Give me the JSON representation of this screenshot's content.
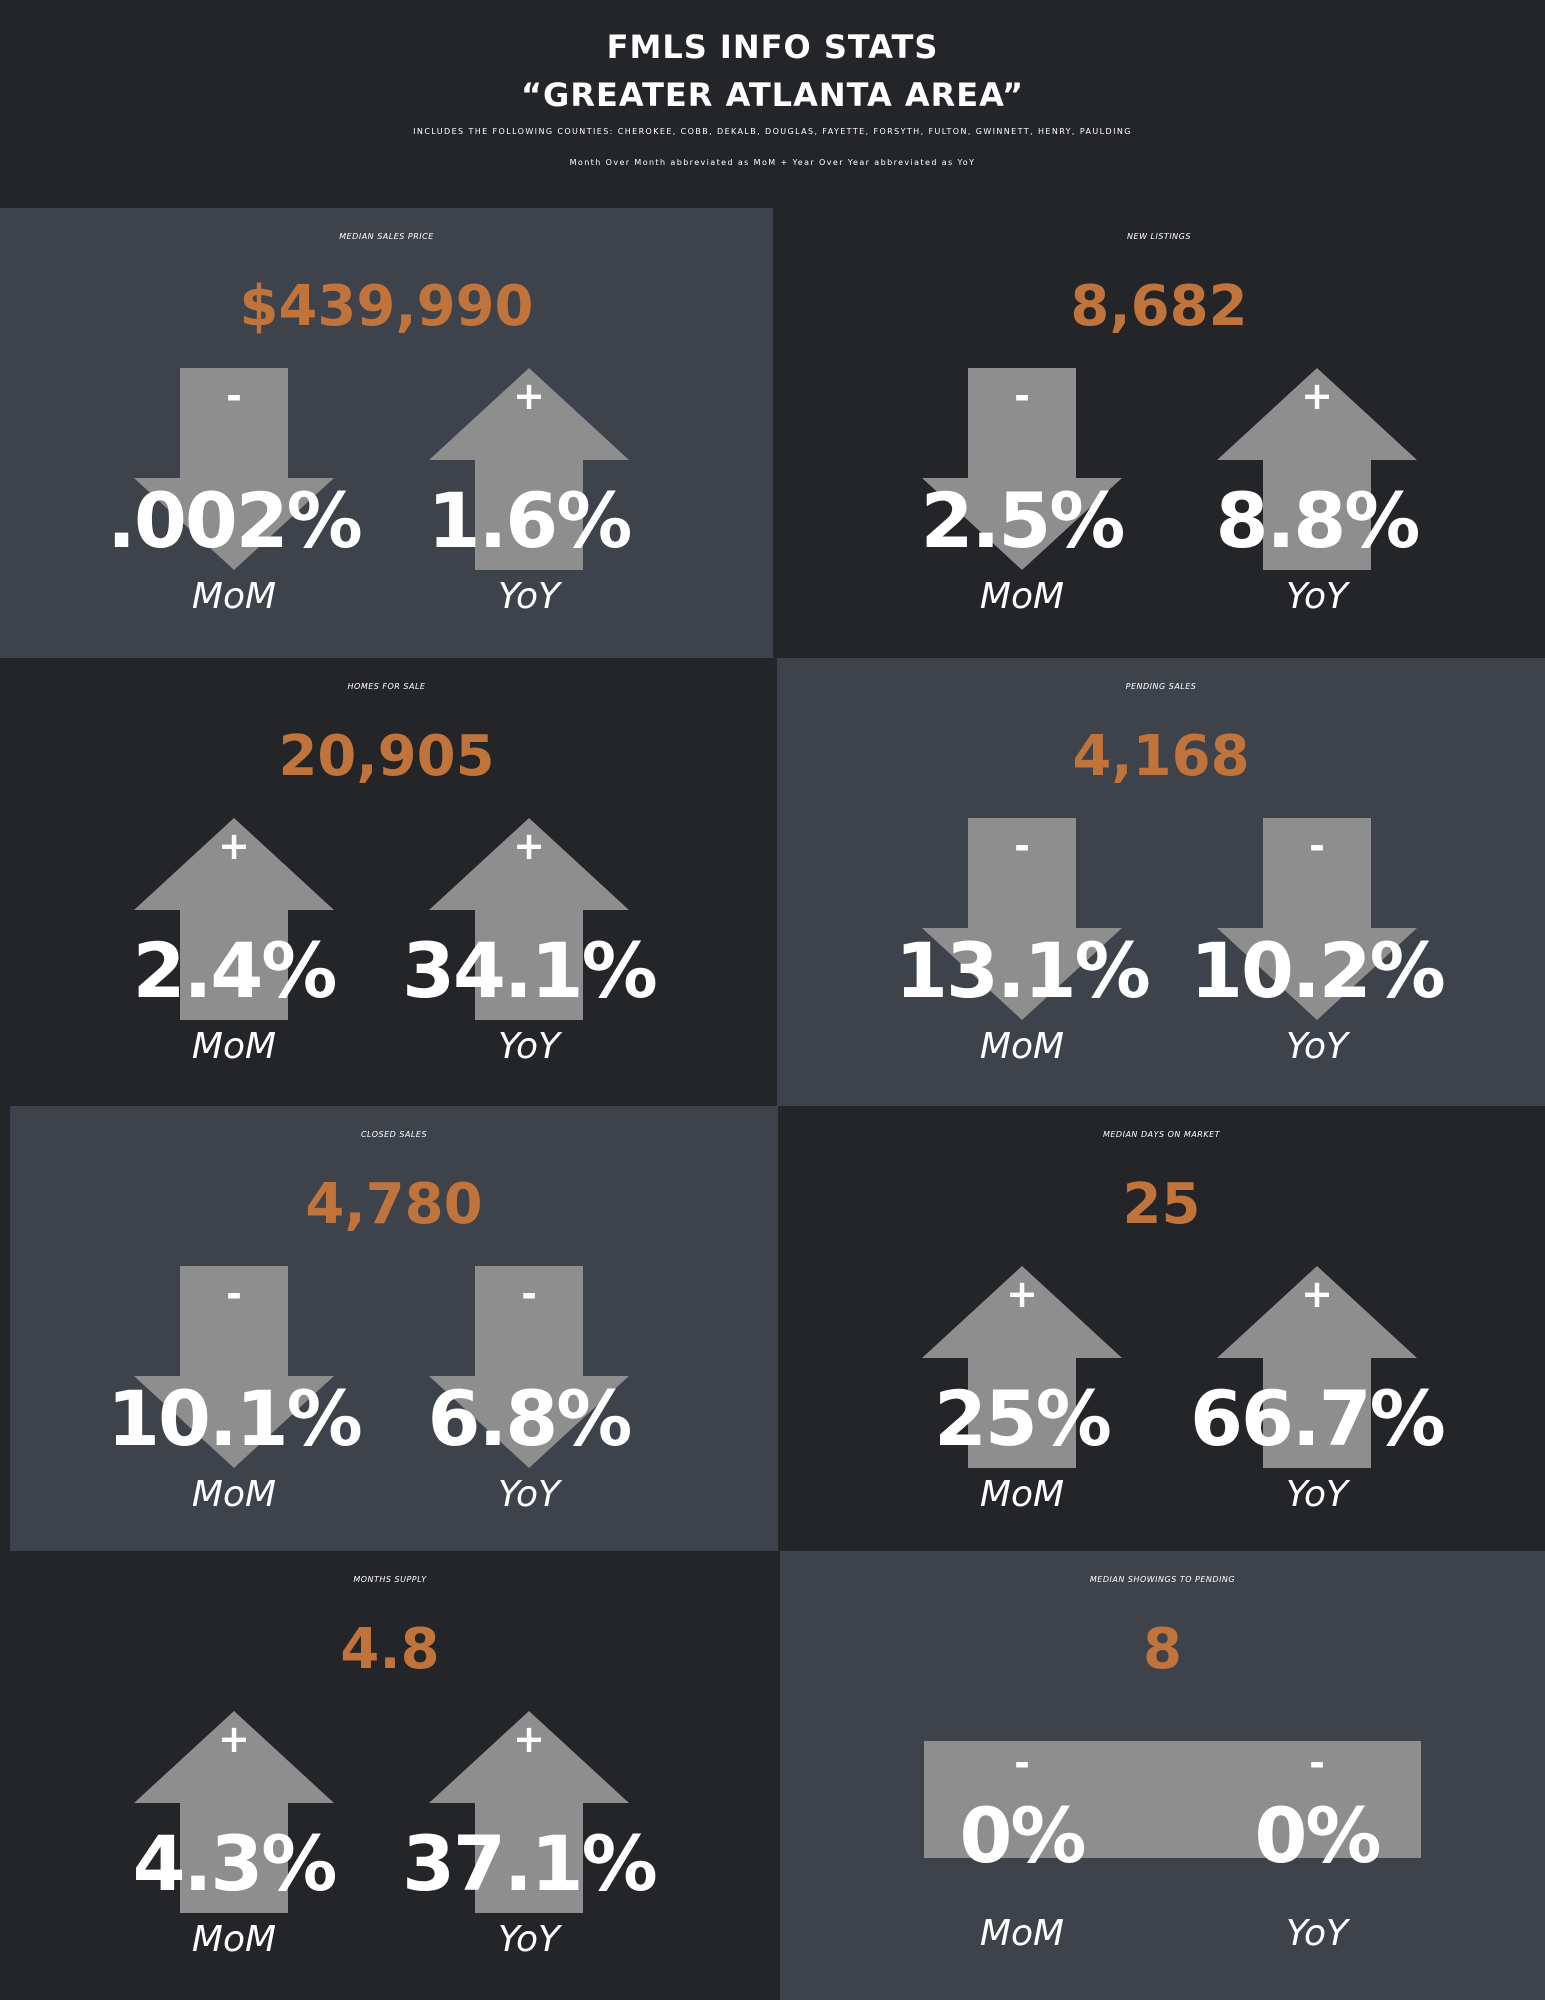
{
  "header": {
    "title": "FMLS INFO STATS",
    "subtitle": "“GREATER ATLANTA AREA”",
    "counties": "INCLUDES THE FOLLOWING COUNTIES: CHEROKEE, COBB, DEKALB, DOUGLAS, FAYETTE, FORSYTH, FULTON, GWINNETT, HENRY, PAULDING",
    "abbreviations": "Month Over Month abbreviated as MoM + Year Over Year abbreviated as YoY"
  },
  "colors": {
    "value_accent": "#c0733b",
    "panel_light": "#3e434b",
    "panel_dark": "#232528",
    "arrow": "#8e8e8e"
  },
  "icons": {
    "up": "arrow-up-icon",
    "down": "arrow-down-icon",
    "flat": "flat-bar-icon"
  },
  "stats": [
    {
      "title": "MEDIAN SALES PRICE",
      "value": "$439,990",
      "mom": {
        "sign": "-",
        "direction": "down",
        "percent": ".002%",
        "label": "MoM"
      },
      "yoy": {
        "sign": "+",
        "direction": "up",
        "percent": "1.6%",
        "label": "YoY"
      }
    },
    {
      "title": "NEW LISTINGS",
      "value": "8,682",
      "mom": {
        "sign": "-",
        "direction": "down",
        "percent": "2.5%",
        "label": "MoM"
      },
      "yoy": {
        "sign": "+",
        "direction": "up",
        "percent": "8.8%",
        "label": "YoY"
      }
    },
    {
      "title": "HOMES FOR SALE",
      "value": "20,905",
      "mom": {
        "sign": "+",
        "direction": "up",
        "percent": "2.4%",
        "label": "MoM"
      },
      "yoy": {
        "sign": "+",
        "direction": "up",
        "percent": "34.1%",
        "label": "YoY"
      }
    },
    {
      "title": "PENDING SALES",
      "value": "4,168",
      "mom": {
        "sign": "-",
        "direction": "down",
        "percent": "13.1%",
        "label": "MoM"
      },
      "yoy": {
        "sign": "-",
        "direction": "down",
        "percent": "10.2%",
        "label": "YoY"
      }
    },
    {
      "title": "CLOSED SALES",
      "value": "4,780",
      "mom": {
        "sign": "-",
        "direction": "down",
        "percent": "10.1%",
        "label": "MoM"
      },
      "yoy": {
        "sign": "-",
        "direction": "down",
        "percent": "6.8%",
        "label": "YoY"
      }
    },
    {
      "title": "MEDIAN DAYS ON MARKET",
      "value": "25",
      "mom": {
        "sign": "+",
        "direction": "up",
        "percent": "25%",
        "label": "MoM"
      },
      "yoy": {
        "sign": "+",
        "direction": "up",
        "percent": "66.7%",
        "label": "YoY"
      }
    },
    {
      "title": "MONTHS SUPPLY",
      "value": "4.8",
      "mom": {
        "sign": "+",
        "direction": "up",
        "percent": "4.3%",
        "label": "MoM"
      },
      "yoy": {
        "sign": "+",
        "direction": "up",
        "percent": "37.1%",
        "label": "YoY"
      }
    },
    {
      "title": "MEDIAN SHOWINGS TO PENDING",
      "value": "8",
      "mom": {
        "sign": "-",
        "direction": "flat",
        "percent": "0%",
        "label": "MoM"
      },
      "yoy": {
        "sign": "-",
        "direction": "flat",
        "percent": "0%",
        "label": "YoY"
      }
    }
  ]
}
